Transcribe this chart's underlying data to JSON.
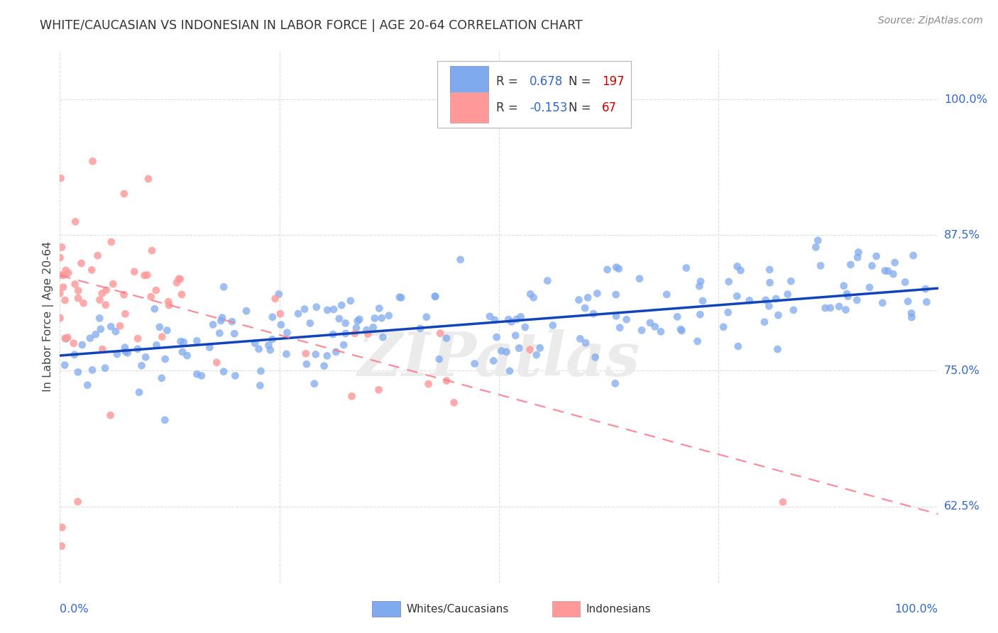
{
  "title": "WHITE/CAUCASIAN VS INDONESIAN IN LABOR FORCE | AGE 20-64 CORRELATION CHART",
  "source": "Source: ZipAtlas.com",
  "ylabel": "In Labor Force | Age 20-64",
  "ylabel_ticks": [
    "62.5%",
    "75.0%",
    "87.5%",
    "100.0%"
  ],
  "ylabel_tick_vals": [
    0.625,
    0.75,
    0.875,
    1.0
  ],
  "xlim": [
    0.0,
    1.0
  ],
  "ylim": [
    0.555,
    1.045
  ],
  "blue_R": "0.678",
  "blue_N": "197",
  "pink_R": "-0.153",
  "pink_N": "67",
  "blue_color": "#7FAAEE",
  "pink_color": "#FF9999",
  "blue_line_color": "#1144BB",
  "pink_line_color": "#FF7788",
  "watermark": "ZIPatlas",
  "blue_line_x0": 0.0,
  "blue_line_y0": 0.764,
  "blue_line_x1": 1.0,
  "blue_line_y1": 0.826,
  "pink_line_x0": 0.0,
  "pink_line_y0": 0.838,
  "pink_line_x1": 1.0,
  "pink_line_y1": 0.618,
  "grid_color": "#DDDDDD",
  "blue_scatter_seed": 42,
  "pink_scatter_seed": 7
}
